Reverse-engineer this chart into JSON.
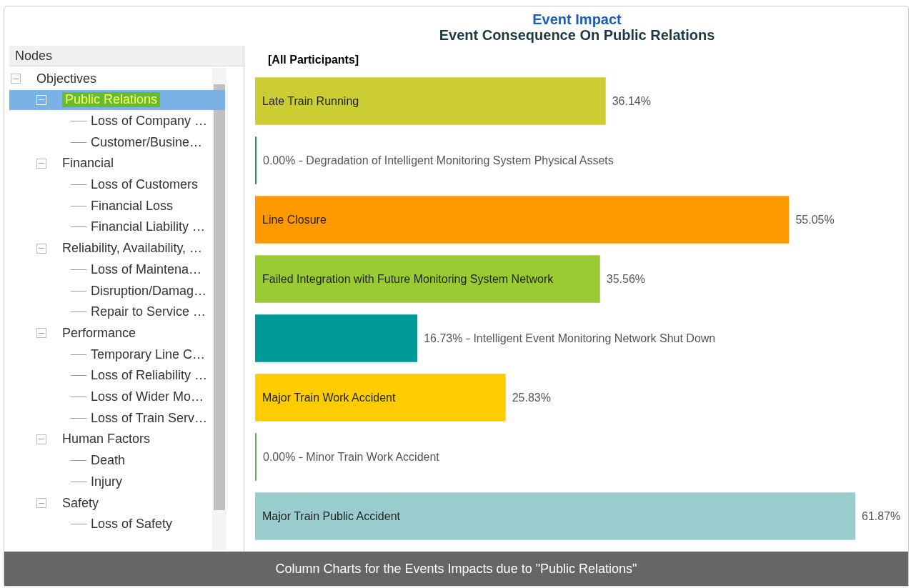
{
  "chart_data": [
    {
      "type": "other",
      "title": "Nodes",
      "annotations": [
        "Objectives",
        "Public Relations",
        "Loss of Company …",
        "Customer/Busine…",
        "Financial",
        "Loss of Customers",
        "Financial Loss",
        "Financial Liability …",
        "Reliability, Availability, …",
        "Loss of Maintena…",
        "Disruption/Damag…",
        "Repair to Service …",
        "Performance",
        "Temporary Line C…",
        "Loss of Reliability …",
        "Loss of Wider Mo…",
        "Loss of Train Serv…",
        "Human Factors",
        "Death",
        "Injury",
        "Safety",
        "Loss of Safety"
      ]
    },
    {
      "type": "bar",
      "orientation": "horizontal",
      "title": "Event Impact",
      "subtitle": "Event Consequence On Public Relations",
      "annotations": [
        "[All Participants]",
        "Column Charts for the Events Impacts due to \"Public Relations\""
      ],
      "categories": [
        "Late Train Running",
        "Degradation of Intelligent Monitoring System Physical Assets",
        "Line Closure",
        "Failed Integration with Future Monitoring System Network",
        "Intelligent Event Monitoring Network Shut Down",
        "Major Train Work Accident",
        "Minor Train Work Accident",
        "Major Train Public Accident"
      ],
      "values": [
        36.14,
        0,
        55.05,
        35.56,
        16.73,
        25.83,
        0,
        61.87
      ],
      "value_labels": [
        "36.14%",
        "0.00%",
        "55.05%",
        "35.56%",
        "16.73%",
        "25.83%",
        "0.00%",
        "61.87%"
      ],
      "colors": [
        "#cccc33",
        "#2e8b57",
        "#ff9900",
        "#99cc33",
        "#009999",
        "#ffcc00",
        "#66aa66",
        "#99cccc"
      ]
    }
  ]
}
